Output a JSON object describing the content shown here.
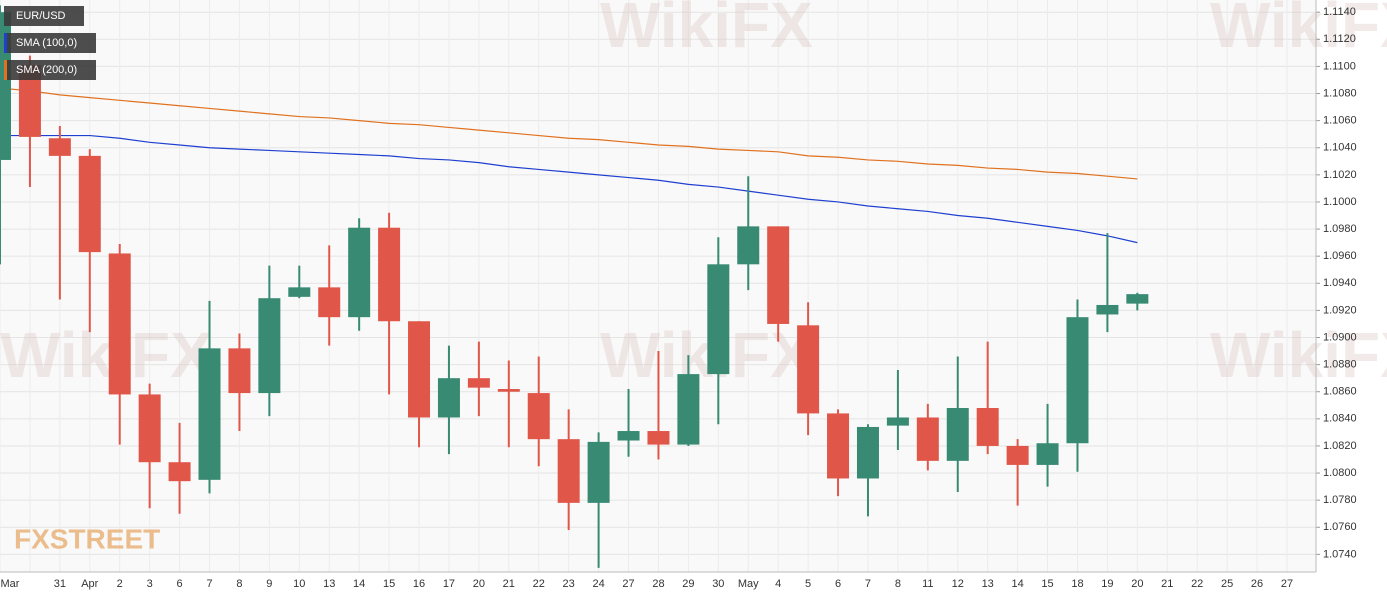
{
  "chart_data": {
    "type": "candlestick",
    "series_name": "EUR/USD",
    "watermark": "WikiFX",
    "logo": "FXSTREET",
    "up_color": "#388a73",
    "down_color": "#e0574a",
    "categories": [
      "Mar",
      null,
      "31",
      "Apr",
      "2",
      "3",
      "6",
      "7",
      "8",
      "9",
      "10",
      "13",
      "14",
      "15",
      "16",
      "17",
      "20",
      "21",
      "22",
      "23",
      "24",
      "27",
      "28",
      "29",
      "30",
      "May",
      "4",
      "5",
      "6",
      "7",
      "8",
      "11",
      "12",
      "13",
      "14",
      "15",
      "18",
      "19",
      "20",
      "21",
      "22",
      "25",
      "26",
      "27"
    ],
    "open": [
      1.1031,
      1.1101,
      1.1047,
      1.1034,
      1.0962,
      1.0858,
      1.0808,
      1.0795,
      1.0892,
      1.0859,
      1.093,
      1.0937,
      1.0915,
      1.0981,
      1.0912,
      1.0841,
      1.087,
      1.0862,
      1.0859,
      1.0825,
      1.0778,
      1.0824,
      1.0831,
      1.0821,
      1.0873,
      1.0954,
      1.0982,
      1.0909,
      1.0844,
      1.0796,
      1.0835,
      1.0841,
      1.0809,
      1.0848,
      1.082,
      1.0806,
      1.0822,
      1.0917,
      1.0925,
      null,
      null,
      null,
      null,
      null
    ],
    "high": [
      1.1145,
      1.1108,
      1.1056,
      1.1039,
      1.0969,
      1.0866,
      1.0837,
      1.0927,
      1.0903,
      1.0953,
      1.0953,
      1.0968,
      1.0988,
      1.0992,
      1.0912,
      1.0894,
      1.0897,
      1.0883,
      1.0886,
      1.0847,
      1.083,
      1.0862,
      1.089,
      1.0887,
      1.0974,
      1.1019,
      1.0982,
      1.0926,
      1.0847,
      1.0836,
      1.0876,
      1.0851,
      1.0886,
      1.0897,
      1.0825,
      1.0851,
      1.0928,
      1.0977,
      1.0933,
      null,
      null,
      null,
      null,
      null
    ],
    "low": [
      1.0954,
      1.1011,
      1.0928,
      1.0904,
      1.0821,
      1.0774,
      1.077,
      1.0785,
      1.0831,
      1.0842,
      1.0929,
      1.0894,
      1.0905,
      1.0858,
      1.0819,
      1.0814,
      1.0842,
      1.0819,
      1.0805,
      1.0758,
      1.073,
      1.0812,
      1.081,
      1.082,
      1.0836,
      1.0935,
      1.0897,
      1.0828,
      1.0783,
      1.0768,
      1.0817,
      1.0802,
      1.0786,
      1.0814,
      1.0776,
      1.079,
      1.0801,
      1.0904,
      1.092,
      null,
      null,
      null,
      null,
      null
    ],
    "close": [
      1.114,
      1.1048,
      1.1034,
      1.0963,
      1.0858,
      1.0808,
      1.0794,
      1.0892,
      1.0859,
      1.0929,
      1.0937,
      1.0915,
      1.0981,
      1.0912,
      1.0841,
      1.087,
      1.0863,
      1.086,
      1.0825,
      1.0778,
      1.0823,
      1.0831,
      1.0821,
      1.0873,
      1.0954,
      1.0982,
      1.091,
      1.0844,
      1.0796,
      1.0834,
      1.0841,
      1.0809,
      1.0848,
      1.082,
      1.0806,
      1.0822,
      1.0915,
      1.0924,
      1.0932,
      null,
      null,
      null,
      null,
      null
    ],
    "lines": [
      {
        "name": "SMA (100,0)",
        "color": "#1f3fd0",
        "values": [
          1.1049,
          1.1049,
          1.1049,
          1.1049,
          1.1047,
          1.1044,
          1.1042,
          1.104,
          1.1039,
          1.1038,
          1.1037,
          1.1036,
          1.1035,
          1.1034,
          1.1032,
          1.1031,
          1.1029,
          1.1026,
          1.1024,
          1.1022,
          1.102,
          1.1018,
          1.1016,
          1.1013,
          1.1011,
          1.1008,
          1.1005,
          1.1002,
          1.1,
          1.0997,
          1.0995,
          1.0993,
          1.099,
          1.0988,
          1.0985,
          1.0982,
          1.0979,
          1.0975,
          1.097,
          null,
          null,
          null,
          null,
          null
        ]
      },
      {
        "name": "SMA (200,0)",
        "color": "#e0711f",
        "values": [
          1.1084,
          1.1082,
          1.1079,
          1.1077,
          1.1075,
          1.1073,
          1.1071,
          1.1069,
          1.1067,
          1.1065,
          1.1063,
          1.1062,
          1.106,
          1.1058,
          1.1057,
          1.1055,
          1.1053,
          1.1051,
          1.1049,
          1.1047,
          1.1046,
          1.1044,
          1.1042,
          1.1041,
          1.1039,
          1.1038,
          1.1037,
          1.1034,
          1.1033,
          1.1031,
          1.103,
          1.1028,
          1.1027,
          1.1025,
          1.1024,
          1.1022,
          1.1021,
          1.1019,
          1.1017,
          null,
          null,
          null,
          null,
          null
        ]
      }
    ],
    "ylim": [
      1.0727,
      1.1149
    ],
    "yticks": [
      {
        "value": 1.074,
        "label": "1.0740"
      },
      {
        "value": 1.076,
        "label": "1.0760"
      },
      {
        "value": 1.078,
        "label": "1.0780"
      },
      {
        "value": 1.08,
        "label": "1.0800"
      },
      {
        "value": 1.082,
        "label": "1.0820"
      },
      {
        "value": 1.084,
        "label": "1.0840"
      },
      {
        "value": 1.086,
        "label": "1.0860"
      },
      {
        "value": 1.088,
        "label": "1.0880"
      },
      {
        "value": 1.09,
        "label": "1.0900"
      },
      {
        "value": 1.092,
        "label": "1.0920"
      },
      {
        "value": 1.094,
        "label": "1.0940"
      },
      {
        "value": 1.096,
        "label": "1.0960"
      },
      {
        "value": 1.098,
        "label": "1.0980"
      },
      {
        "value": 1.1,
        "label": "1.1000"
      },
      {
        "value": 1.102,
        "label": "1.1020"
      },
      {
        "value": 1.104,
        "label": "1.1040"
      },
      {
        "value": 1.106,
        "label": "1.1060"
      },
      {
        "value": 1.108,
        "label": "1.1080"
      },
      {
        "value": 1.11,
        "label": "1.1100"
      },
      {
        "value": 1.112,
        "label": "1.1120"
      },
      {
        "value": 1.114,
        "label": "1.1140"
      }
    ],
    "grid": true,
    "legend": "top-left"
  }
}
